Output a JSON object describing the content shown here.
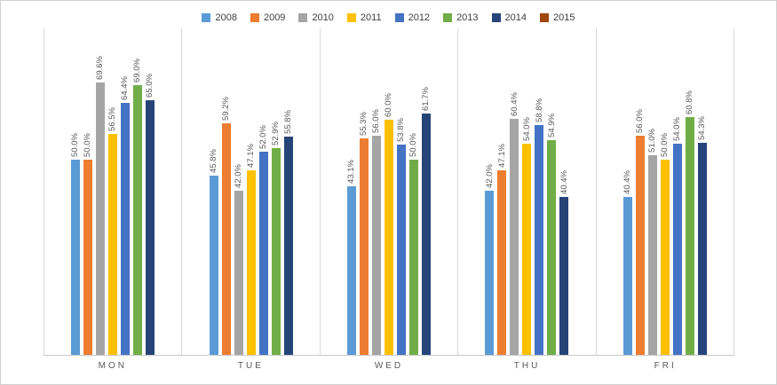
{
  "chart_data": {
    "type": "bar",
    "title": "",
    "xlabel": "",
    "ylabel": "",
    "ylim": [
      0,
      75
    ],
    "legend_position": "top",
    "grid": "vertical-category-separators",
    "value_suffix": "%",
    "categories": [
      "MON",
      "TUE",
      "WED",
      "THU",
      "FRI"
    ],
    "series": [
      {
        "name": "2008",
        "color": "#5B9BD5",
        "values": [
          50.0,
          45.8,
          43.1,
          42.0,
          40.4
        ]
      },
      {
        "name": "2009",
        "color": "#ED7D31",
        "values": [
          50.0,
          59.2,
          55.3,
          47.1,
          56.0
        ]
      },
      {
        "name": "2010",
        "color": "#A5A5A5",
        "values": [
          69.6,
          42.0,
          56.0,
          60.4,
          51.0
        ]
      },
      {
        "name": "2011",
        "color": "#FFC000",
        "values": [
          56.5,
          47.1,
          60.0,
          54.0,
          50.0
        ]
      },
      {
        "name": "2012",
        "color": "#4472C4",
        "values": [
          64.4,
          52.0,
          53.8,
          58.8,
          54.0
        ]
      },
      {
        "name": "2013",
        "color": "#70AD47",
        "values": [
          69.0,
          52.9,
          50.0,
          54.9,
          60.8
        ]
      },
      {
        "name": "2014",
        "color": "#264478",
        "values": [
          65.0,
          55.8,
          61.7,
          40.4,
          54.3
        ]
      },
      {
        "name": "2015",
        "color": "#9E480E",
        "values": [
          null,
          null,
          null,
          null,
          null
        ]
      }
    ]
  }
}
